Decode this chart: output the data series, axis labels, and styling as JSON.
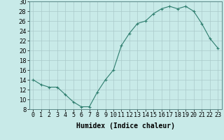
{
  "x": [
    0,
    1,
    2,
    3,
    4,
    5,
    6,
    7,
    8,
    9,
    10,
    11,
    12,
    13,
    14,
    15,
    16,
    17,
    18,
    19,
    20,
    21,
    22,
    23
  ],
  "y": [
    14,
    13,
    12.5,
    12.5,
    11,
    9.5,
    8.5,
    8.5,
    11.5,
    14,
    16,
    21,
    23.5,
    25.5,
    26,
    27.5,
    28.5,
    29,
    28.5,
    29,
    28,
    25.5,
    22.5,
    20.5
  ],
  "line_color": "#2e7d6e",
  "marker": "P",
  "marker_size": 2.5,
  "bg_color": "#c8eae8",
  "grid_color": "#aacaca",
  "xlabel": "Humidex (Indice chaleur)",
  "xlim": [
    -0.5,
    23.5
  ],
  "ylim": [
    8,
    30
  ],
  "yticks": [
    8,
    10,
    12,
    14,
    16,
    18,
    20,
    22,
    24,
    26,
    28,
    30
  ],
  "xtick_labels": [
    "0",
    "1",
    "2",
    "3",
    "4",
    "5",
    "6",
    "7",
    "8",
    "9",
    "10",
    "11",
    "12",
    "13",
    "14",
    "15",
    "16",
    "17",
    "18",
    "19",
    "20",
    "21",
    "22",
    "23"
  ],
  "xlabel_fontsize": 7,
  "tick_fontsize": 6
}
